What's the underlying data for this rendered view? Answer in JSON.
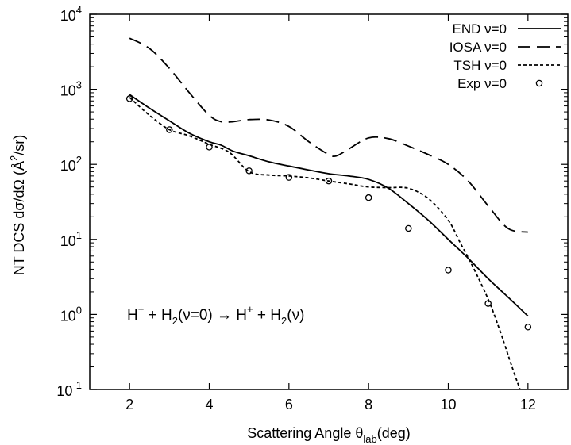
{
  "chart_data": {
    "type": "line",
    "xlabel": "Scattering Angle θlab(deg)",
    "xlabel_main": "Scattering Angle θ",
    "xlabel_sub": "lab",
    "xlabel_tail": "(deg)",
    "ylabel": "NT DCS dσ/dΩ (Å2/sr)",
    "ylabel_main": "NT DCS dσ/dΩ (Å",
    "ylabel_sup": "2",
    "ylabel_tail": "/sr)",
    "xlim": [
      1,
      13
    ],
    "ylim": [
      0.1,
      10000
    ],
    "yscale": "log",
    "grid": false,
    "legend_position": "top-right",
    "x_ticks": [
      2,
      4,
      6,
      8,
      10,
      12
    ],
    "x_tick_labels": [
      "2",
      "4",
      "6",
      "8",
      "10",
      "12"
    ],
    "y_ticks": [
      {
        "value": 0.1,
        "base": "10",
        "exp": "-1"
      },
      {
        "value": 1,
        "base": "10",
        "exp": "0"
      },
      {
        "value": 10,
        "base": "10",
        "exp": "1"
      },
      {
        "value": 100,
        "base": "10",
        "exp": "2"
      },
      {
        "value": 1000,
        "base": "10",
        "exp": "3"
      },
      {
        "value": 10000,
        "base": "10",
        "exp": "4"
      }
    ],
    "annotation": {
      "parts": [
        {
          "text": "H",
          "sup": "+"
        },
        {
          "text": " + H",
          "sub": "2"
        },
        {
          "text": "(ν=0) → H",
          "sup": "+"
        },
        {
          "text": " + H",
          "sub": "2"
        },
        {
          "text": "(ν)"
        }
      ]
    },
    "series": [
      {
        "name": "END ν=0",
        "style": "solid",
        "color": "#000000",
        "x": [
          2,
          2.5,
          3,
          3.5,
          4,
          4.3,
          4.6,
          5,
          5.5,
          6,
          6.5,
          7,
          7.5,
          8,
          8.5,
          9,
          9.5,
          10,
          10.5,
          11,
          11.5,
          12
        ],
        "y": [
          850,
          560,
          380,
          260,
          200,
          180,
          150,
          130,
          108,
          95,
          84,
          75,
          70,
          63,
          48,
          30,
          18,
          10,
          5.6,
          3.0,
          1.7,
          0.95
        ]
      },
      {
        "name": "IOSA ν=0",
        "style": "dashed",
        "color": "#000000",
        "x": [
          2,
          2.5,
          3,
          3.5,
          4,
          4.3,
          4.6,
          5,
          5.5,
          6,
          6.5,
          7,
          7.2,
          7.5,
          8,
          8.5,
          9,
          9.5,
          10,
          10.5,
          11,
          11.5,
          12
        ],
        "y": [
          4800,
          3500,
          1900,
          900,
          450,
          370,
          370,
          395,
          390,
          320,
          200,
          135,
          130,
          160,
          225,
          220,
          175,
          135,
          100,
          60,
          28,
          14,
          12.5
        ]
      },
      {
        "name": "TSH ν=0",
        "style": "dotted",
        "color": "#000000",
        "x": [
          2,
          2.5,
          3,
          3.5,
          4,
          4.5,
          5,
          5.5,
          6,
          6.5,
          7,
          7.5,
          8,
          8.5,
          9,
          9.5,
          10,
          10.3,
          10.6,
          11,
          11.3,
          11.6,
          11.8
        ],
        "y": [
          780,
          450,
          290,
          240,
          185,
          145,
          80,
          72,
          70,
          66,
          60,
          55,
          50,
          49,
          48,
          35,
          18,
          9,
          4.5,
          1.6,
          0.6,
          0.2,
          0.1
        ]
      },
      {
        "name": "Exp ν=0",
        "style": "markers",
        "color": "#000000",
        "x": [
          2,
          3,
          4,
          5,
          6,
          7,
          8,
          9,
          10,
          11,
          12
        ],
        "y": [
          750,
          290,
          170,
          82,
          67,
          60,
          36,
          14,
          3.9,
          1.4,
          0.68
        ]
      }
    ]
  }
}
